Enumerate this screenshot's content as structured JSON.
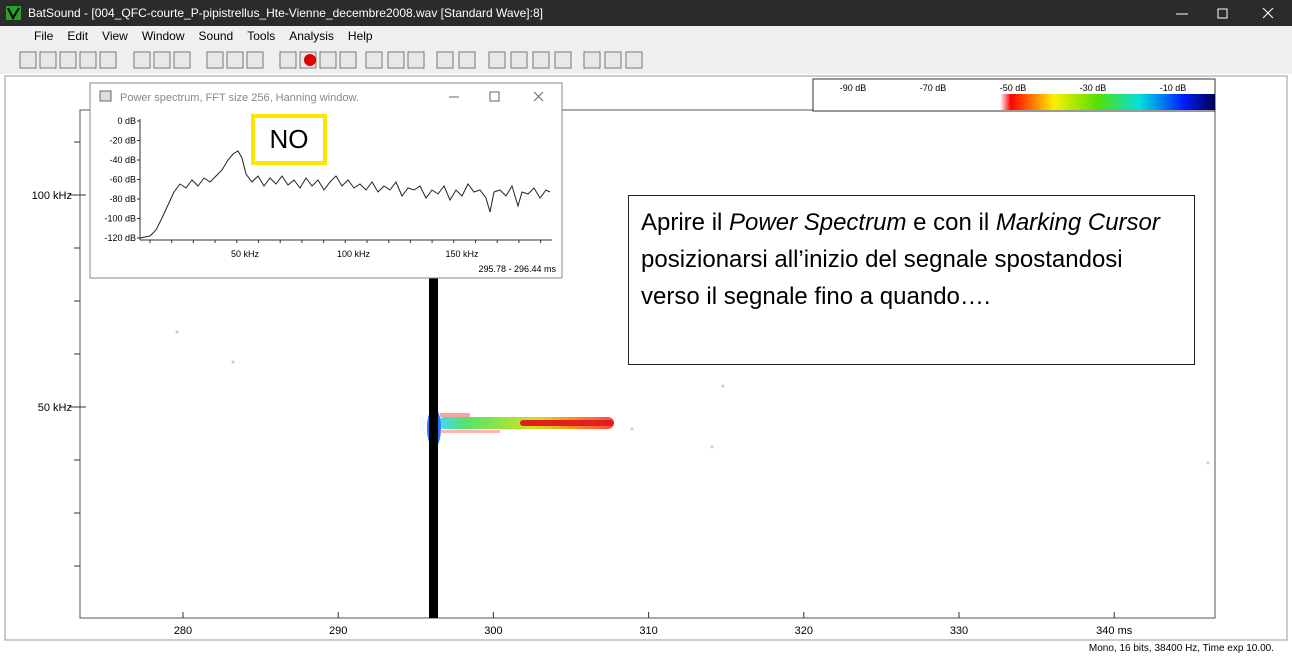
{
  "window_title": "BatSound - [004_QFC-courte_P-pipistrellus_Hte-Vienne_decembre2008.wav [Standard Wave]:8]",
  "menu": [
    "File",
    "Edit",
    "View",
    "Window",
    "Sound",
    "Tools",
    "Analysis",
    "Help"
  ],
  "spectrogram": {
    "y_labels": [
      "100 kHz",
      "50 kHz"
    ],
    "x_labels": [
      "280",
      "290",
      "300",
      "310",
      "320",
      "330",
      "340 ms"
    ],
    "colorbar_labels": [
      "-90 dB",
      "-70 dB",
      "-50 dB",
      "-30 dB",
      "-10 dB"
    ]
  },
  "power_spectrum": {
    "title": "Power spectrum, FFT size 256, Hanning window.",
    "y_labels": [
      "0 dB",
      "-20 dB",
      "-40 dB",
      "-60 dB",
      "-80 dB",
      "-100 dB",
      "-120 dB"
    ],
    "x_labels": [
      "50 kHz",
      "100 kHz",
      "150 kHz"
    ],
    "time_range": "295.78 - 296.44 ms"
  },
  "callout": "NO",
  "annotation": [
    {
      "text": "Aprire il ",
      "italic": false
    },
    {
      "text": "Power Spectrum",
      "italic": true
    },
    {
      "text": " e con il ",
      "italic": false
    },
    {
      "text": "Marking Cursor",
      "italic": true
    },
    {
      "text": " posizionarsi all’inizio del segnale spostandosi verso il segnale fino a quando….",
      "italic": false
    }
  ],
  "status": "Mono, 16 bits, 38400 Hz, Time exp 10.00."
}
